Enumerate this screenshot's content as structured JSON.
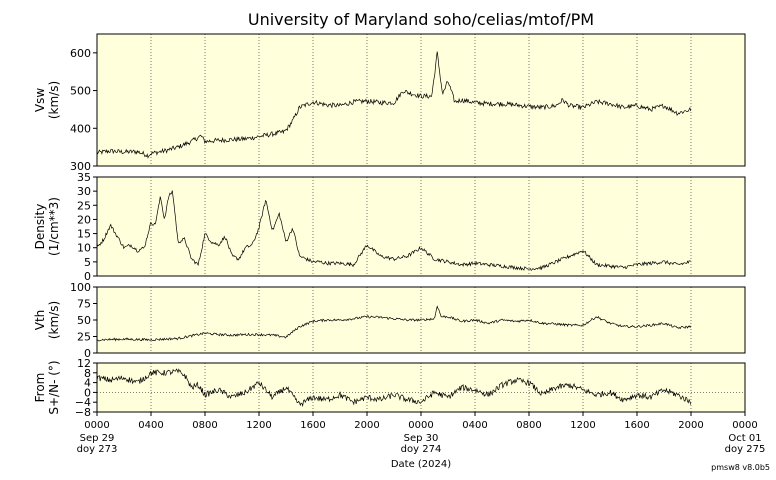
{
  "title": "University of Maryland  soho/celias/mtof/PM",
  "footer": "pmsw8 v8.0b5",
  "colors": {
    "panel_bg": "#ffffdc",
    "trace": "#000000",
    "grid": "#555555"
  },
  "chart_data": {
    "type": "line",
    "time_range": [
      "2024-09-29 00:00",
      "2024-10-01 00:00"
    ],
    "x_tick_labels": [
      "0000",
      "0400",
      "0800",
      "1200",
      "1600",
      "2000",
      "0000",
      "0400",
      "0800",
      "1200",
      "1600",
      "2000",
      "0000"
    ],
    "x_date_labels": [
      {
        "hour": 0,
        "line1": "Sep 29",
        "line2": "doy 273"
      },
      {
        "hour": 24,
        "line1": "Sep 30",
        "line2": "doy 274"
      },
      {
        "hour": 48,
        "line1": "Oct 01",
        "line2": "doy 275"
      }
    ],
    "xlabel": "Date (2024)",
    "grid": "dotted vertical every 4 h",
    "panels": [
      {
        "id": "vsw",
        "ylabel": [
          "Vsw",
          "(km/s)"
        ],
        "ylim": [
          300,
          650
        ],
        "yticks": [
          300,
          400,
          500,
          600
        ],
        "hours": [
          0,
          1,
          2,
          3,
          3.8,
          4,
          5,
          6,
          7,
          7.7,
          8,
          9,
          10,
          11,
          12,
          13,
          13.8,
          14,
          14.5,
          15,
          16,
          17,
          18,
          19,
          20,
          21,
          22,
          22.7,
          23,
          24,
          24.8,
          25.2,
          25.6,
          26,
          26.5,
          27,
          28,
          29,
          30,
          31,
          32,
          33,
          34,
          34.5,
          35,
          36,
          37,
          38,
          39,
          40,
          41,
          42,
          43,
          44
        ],
        "values": [
          335,
          340,
          337,
          338,
          328,
          333,
          340,
          350,
          365,
          380,
          365,
          368,
          370,
          372,
          378,
          385,
          390,
          395,
          420,
          455,
          470,
          462,
          460,
          470,
          472,
          468,
          468,
          500,
          495,
          485,
          485,
          600,
          490,
          525,
          470,
          475,
          468,
          465,
          465,
          462,
          458,
          455,
          460,
          475,
          460,
          455,
          470,
          465,
          455,
          460,
          450,
          460,
          440,
          450
        ]
      },
      {
        "id": "density",
        "ylabel": [
          "Density",
          "(1/cm**3)"
        ],
        "ylim": [
          0,
          35
        ],
        "yticks": [
          0,
          5,
          10,
          15,
          20,
          25,
          30,
          35
        ],
        "hours": [
          0,
          0.5,
          1,
          1.5,
          2,
          2.5,
          3,
          3.5,
          4,
          4.3,
          4.7,
          5,
          5.3,
          5.6,
          6,
          6.5,
          7,
          7.5,
          8,
          8.5,
          9,
          9.5,
          10,
          10.5,
          11,
          11.5,
          12,
          12.5,
          13,
          13.5,
          14,
          14.5,
          15,
          15.5,
          16,
          16.5,
          17,
          18,
          19,
          20,
          21,
          22,
          23,
          24,
          25,
          26,
          27,
          28,
          29,
          30,
          31,
          32,
          33,
          34,
          35,
          36,
          37,
          38,
          39,
          40,
          41,
          42,
          43,
          44
        ],
        "values": [
          10,
          13,
          18,
          14,
          10,
          11,
          9,
          10,
          19,
          18,
          28,
          20,
          28,
          30,
          12,
          13,
          6,
          4,
          15,
          12,
          11,
          14,
          7,
          6,
          10,
          11,
          17,
          27,
          16,
          22,
          12,
          17,
          7,
          6,
          5,
          5,
          4.5,
          4.5,
          4,
          11,
          7,
          6,
          7,
          10,
          6,
          5,
          4,
          4.5,
          4,
          3.5,
          3,
          2.5,
          3,
          5,
          7,
          9,
          4,
          3.5,
          3,
          4,
          4.5,
          5,
          4,
          5
        ]
      },
      {
        "id": "vth",
        "ylabel": [
          "Vth",
          "(km/s)"
        ],
        "ylim": [
          0,
          100
        ],
        "yticks": [
          0,
          25,
          50,
          75,
          100
        ],
        "hours": [
          0,
          2,
          4,
          6,
          7,
          8,
          9,
          10,
          11,
          12,
          13,
          14,
          15,
          16,
          17,
          18,
          19,
          20,
          21,
          22,
          23,
          24,
          25,
          25.2,
          25.5,
          26,
          27,
          28,
          29,
          30,
          31,
          32,
          33,
          34,
          35,
          36,
          37,
          38,
          39,
          40,
          41,
          42,
          43,
          44
        ],
        "values": [
          20,
          21,
          20,
          22,
          26,
          30,
          28,
          27,
          28,
          28,
          27,
          24,
          40,
          48,
          50,
          50,
          52,
          55,
          54,
          52,
          50,
          50,
          52,
          72,
          55,
          55,
          48,
          50,
          45,
          50,
          48,
          50,
          45,
          44,
          42,
          42,
          55,
          45,
          40,
          40,
          42,
          45,
          38,
          40
        ]
      },
      {
        "id": "from",
        "ylabel": [
          "From",
          "S+/N- (°)"
        ],
        "ylim": [
          -8,
          12
        ],
        "yticks": [
          -8,
          -4,
          0,
          4,
          8,
          12
        ],
        "tick_labels": [
          "−8",
          "−4",
          "0",
          "4",
          "8",
          "12"
        ],
        "zero_line": true,
        "hours": [
          0,
          1,
          2,
          3,
          3.8,
          4,
          5,
          6,
          6.5,
          7,
          7.5,
          8,
          9,
          10,
          11,
          12,
          13,
          14,
          15,
          16,
          17,
          18,
          19,
          20,
          21,
          22,
          23,
          24,
          25,
          26,
          27,
          28,
          29,
          30,
          31,
          32,
          33,
          34,
          35,
          36,
          37,
          38,
          39,
          40,
          41,
          42,
          43,
          44
        ],
        "values": [
          6,
          5,
          6,
          4,
          7,
          8,
          8,
          8.5,
          7,
          2,
          3,
          -1,
          1,
          -2,
          0,
          4,
          -2,
          2,
          -5,
          -2,
          -3,
          -1,
          -4,
          -2,
          -3,
          -1,
          -3,
          -4,
          0,
          -2,
          2,
          1,
          -1,
          3,
          5,
          4,
          -1,
          2,
          3,
          1,
          -1,
          0,
          -3,
          -1,
          -2,
          1,
          -1,
          -4
        ]
      }
    ]
  }
}
